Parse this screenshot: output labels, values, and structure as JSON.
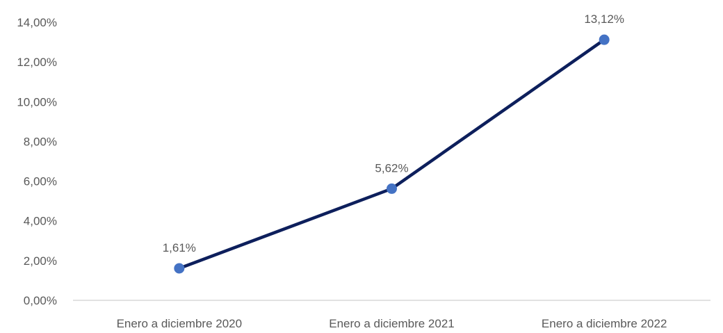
{
  "chart_data": {
    "type": "line",
    "categories": [
      "Enero a diciembre 2020",
      "Enero a diciembre 2021",
      "Enero a diciembre 2022"
    ],
    "series": [
      {
        "values": [
          1.61,
          5.62,
          13.12
        ]
      }
    ],
    "data_labels": [
      "1,61%",
      "5,62%",
      "13,12%"
    ],
    "y_ticks": [
      0,
      2,
      4,
      6,
      8,
      10,
      12,
      14
    ],
    "y_tick_labels": [
      "0,00%",
      "2,00%",
      "4,00%",
      "6,00%",
      "8,00%",
      "10,00%",
      "12,00%",
      "14,00%"
    ],
    "ylim": [
      0,
      14
    ],
    "grid": false,
    "legend": "none",
    "title": "",
    "xlabel": "",
    "ylabel": "",
    "colors": {
      "line": "#0d1f5c",
      "marker": "#4472c4",
      "axis": "#d9d9d9",
      "text": "#595959"
    }
  }
}
